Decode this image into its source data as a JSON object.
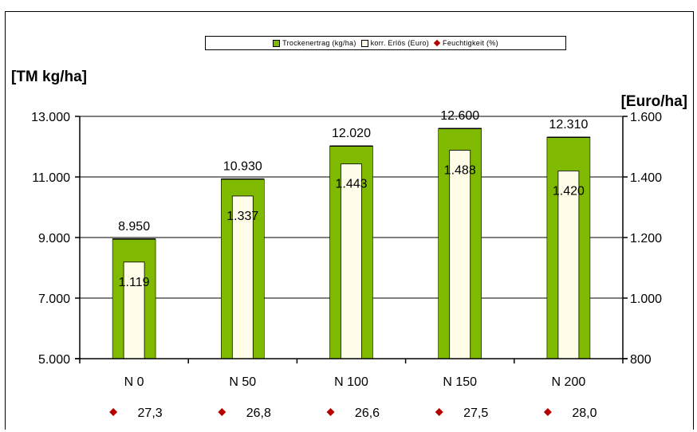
{
  "chart_data": {
    "type": "bar",
    "categories": [
      "N 0",
      "N 50",
      "N 100",
      "N 150",
      "N 200"
    ],
    "series": [
      {
        "name": "Trockenertrag (kg/ha)",
        "axis": "left",
        "color": "#7fba00",
        "values": [
          8950,
          10930,
          12020,
          12600,
          12310
        ],
        "labels": [
          "8.950",
          "10.930",
          "12.020",
          "12.600",
          "12.310"
        ]
      },
      {
        "name": "korr. Erlös (Euro)",
        "axis": "right",
        "color": "#fffde8",
        "values": [
          1119,
          1337,
          1443,
          1488,
          1420
        ],
        "labels": [
          "1.119",
          "1.337",
          "1.443",
          "1.488",
          "1.420"
        ]
      },
      {
        "name": "Feuchtigkeit (%)",
        "marker": "diamond",
        "color": "#b50000",
        "values": [
          27.3,
          26.8,
          26.6,
          27.5,
          28.0
        ],
        "labels": [
          "27,3",
          "26,8",
          "26,6",
          "27,5",
          "28,0"
        ]
      }
    ],
    "ylabel_left": "[TM kg/ha]",
    "ylabel_right": "[Euro/ha]",
    "ylim_left": [
      5000,
      13000
    ],
    "ylim_right": [
      800,
      1600
    ],
    "yticks_left": [
      "5.000",
      "7.000",
      "9.000",
      "11.000",
      "13.000"
    ],
    "yticks_right": [
      "800",
      "1.000",
      "1.200",
      "1.400",
      "1.600"
    ],
    "grid": true,
    "legend": "top"
  }
}
